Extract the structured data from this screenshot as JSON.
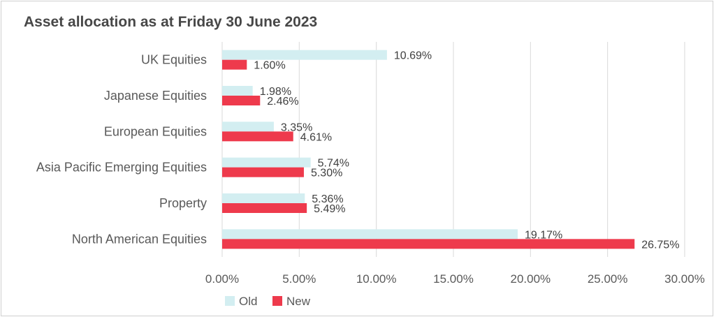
{
  "chart_data": {
    "type": "bar",
    "orientation": "horizontal",
    "title": "Asset allocation as at Friday 30 June 2023",
    "categories": [
      "UK Equities",
      "Japanese Equities",
      "European Equities",
      "Asia Pacific Emerging Equities",
      "Property",
      "North American Equities"
    ],
    "series": [
      {
        "name": "Old",
        "color": "#d3eef1",
        "values": [
          10.69,
          1.98,
          3.35,
          5.74,
          5.36,
          19.17
        ],
        "labels": [
          "10.69%",
          "1.98%",
          "3.35%",
          "5.74%",
          "5.36%",
          "19.17%"
        ]
      },
      {
        "name": "New",
        "color": "#ee3a4c",
        "values": [
          1.6,
          2.46,
          4.61,
          5.3,
          5.49,
          26.75
        ],
        "labels": [
          "1.60%",
          "2.46%",
          "4.61%",
          "5.30%",
          "5.49%",
          "26.75%"
        ]
      }
    ],
    "xlim": [
      0,
      30
    ],
    "xticks": [
      0,
      5,
      10,
      15,
      20,
      25,
      30
    ],
    "xtick_labels": [
      "0.00%",
      "5.00%",
      "10.00%",
      "15.00%",
      "20.00%",
      "25.00%",
      "30.00%"
    ],
    "grid": "vertical",
    "legend": "bottom-left",
    "xlabel": "",
    "ylabel": ""
  }
}
